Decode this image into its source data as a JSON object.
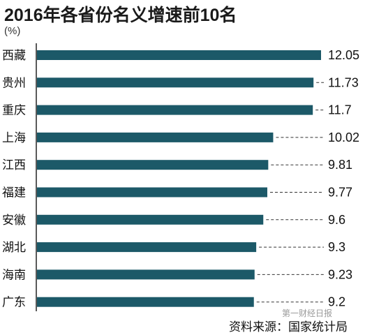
{
  "title": "2016年各省份名义增速前10名",
  "unit": "(%)",
  "source": "资料来源：国家统计局",
  "watermark": "第一财经日报",
  "colors": {
    "bar": "#1c5968",
    "axis": "#222222",
    "leader": "#333333"
  },
  "chart_data": {
    "type": "bar",
    "orientation": "horizontal",
    "title": "2016年各省份名义增速前10名",
    "ylabel": "(%)",
    "categories": [
      "西藏",
      "贵州",
      "重庆",
      "上海",
      "江西",
      "福建",
      "安徽",
      "湖北",
      "海南",
      "广东"
    ],
    "values": [
      12.05,
      11.73,
      11.7,
      10.02,
      9.81,
      9.77,
      9.6,
      9.3,
      9.23,
      9.2
    ],
    "value_labels": [
      "12.05",
      "11.73",
      "11.7",
      "10.02",
      "9.81",
      "9.77",
      "9.6",
      "9.3",
      "9.23",
      "9.2"
    ],
    "xlim": [
      0,
      12.05
    ],
    "grid": false,
    "legend": "none"
  }
}
